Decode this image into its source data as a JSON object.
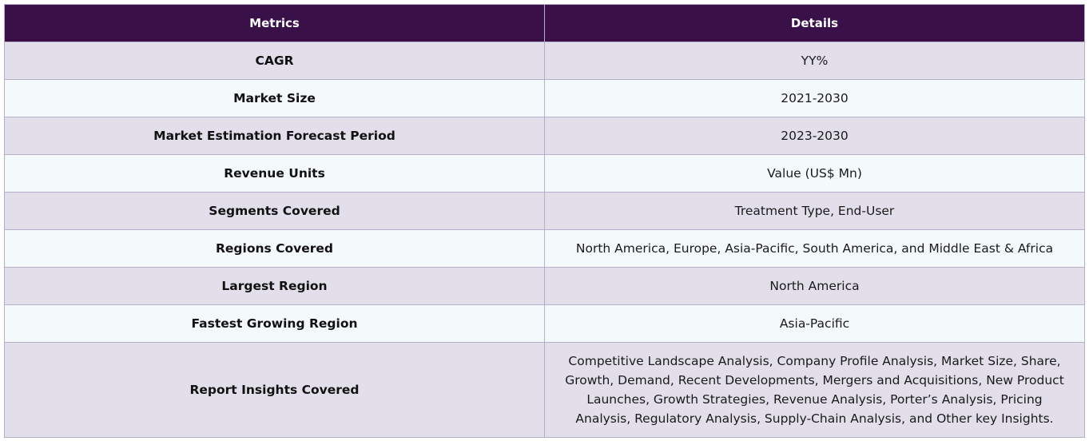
{
  "table": {
    "headers": [
      "Metrics",
      "Details"
    ],
    "rows": [
      {
        "metric": "CAGR",
        "detail": "YY%"
      },
      {
        "metric": "Market Size",
        "detail": "2021-2030"
      },
      {
        "metric": "Market Estimation Forecast Period",
        "detail": "2023-2030"
      },
      {
        "metric": "Revenue Units",
        "detail": "Value (US$ Mn)"
      },
      {
        "metric": "Segments Covered",
        "detail": "Treatment Type, End-User"
      },
      {
        "metric": "Regions Covered",
        "detail": "North America, Europe, Asia-Pacific, South America, and Middle East & Africa"
      },
      {
        "metric": "Largest Region",
        "detail": "North America"
      },
      {
        "metric": "Fastest Growing Region",
        "detail": "Asia-Pacific"
      },
      {
        "metric": "Report Insights Covered",
        "detail": "Competitive Landscape Analysis, Company Profile Analysis, Market Size, Share, Growth, Demand, Recent Developments, Mergers and Acquisitions, New Product Launches, Growth Strategies, Revenue Analysis, Porter’s Analysis, Pricing Analysis, Regulatory Analysis, Supply-Chain Analysis, and Other key Insights."
      }
    ]
  },
  "colors": {
    "header_bg": "#3a1049",
    "header_text": "#ffffff",
    "row_odd_bg": "#e2dfea",
    "row_even_bg": "#f4f9fb",
    "border": "#b6afc9"
  }
}
